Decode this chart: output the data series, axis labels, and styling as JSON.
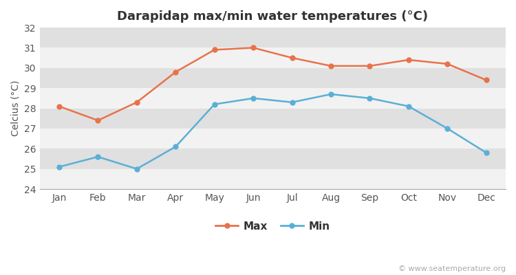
{
  "title": "Darapidap max/min water temperatures (°C)",
  "ylabel": "Celcius (°C)",
  "months": [
    "Jan",
    "Feb",
    "Mar",
    "Apr",
    "May",
    "Jun",
    "Jul",
    "Aug",
    "Sep",
    "Oct",
    "Nov",
    "Dec"
  ],
  "max_values": [
    28.1,
    27.4,
    28.3,
    29.8,
    30.9,
    31.0,
    30.5,
    30.1,
    30.1,
    30.4,
    30.2,
    29.4
  ],
  "min_values": [
    25.1,
    25.6,
    25.0,
    26.1,
    28.2,
    28.5,
    28.3,
    28.7,
    28.5,
    28.1,
    27.0,
    25.8
  ],
  "max_color": "#e8724a",
  "min_color": "#5bafd6",
  "figure_bg_color": "#ffffff",
  "plot_bg_color": "#e8e8e8",
  "band_color_light": "#f2f2f2",
  "band_color_dark": "#e0e0e0",
  "ylim": [
    24,
    32
  ],
  "yticks": [
    24,
    25,
    26,
    27,
    28,
    29,
    30,
    31,
    32
  ],
  "legend_labels": [
    "Max",
    "Min"
  ],
  "watermark": "© www.seatemperature.org",
  "title_fontsize": 13,
  "axis_label_fontsize": 10,
  "tick_fontsize": 10,
  "legend_fontsize": 11,
  "watermark_fontsize": 8,
  "line_width": 1.8,
  "marker_size": 6
}
